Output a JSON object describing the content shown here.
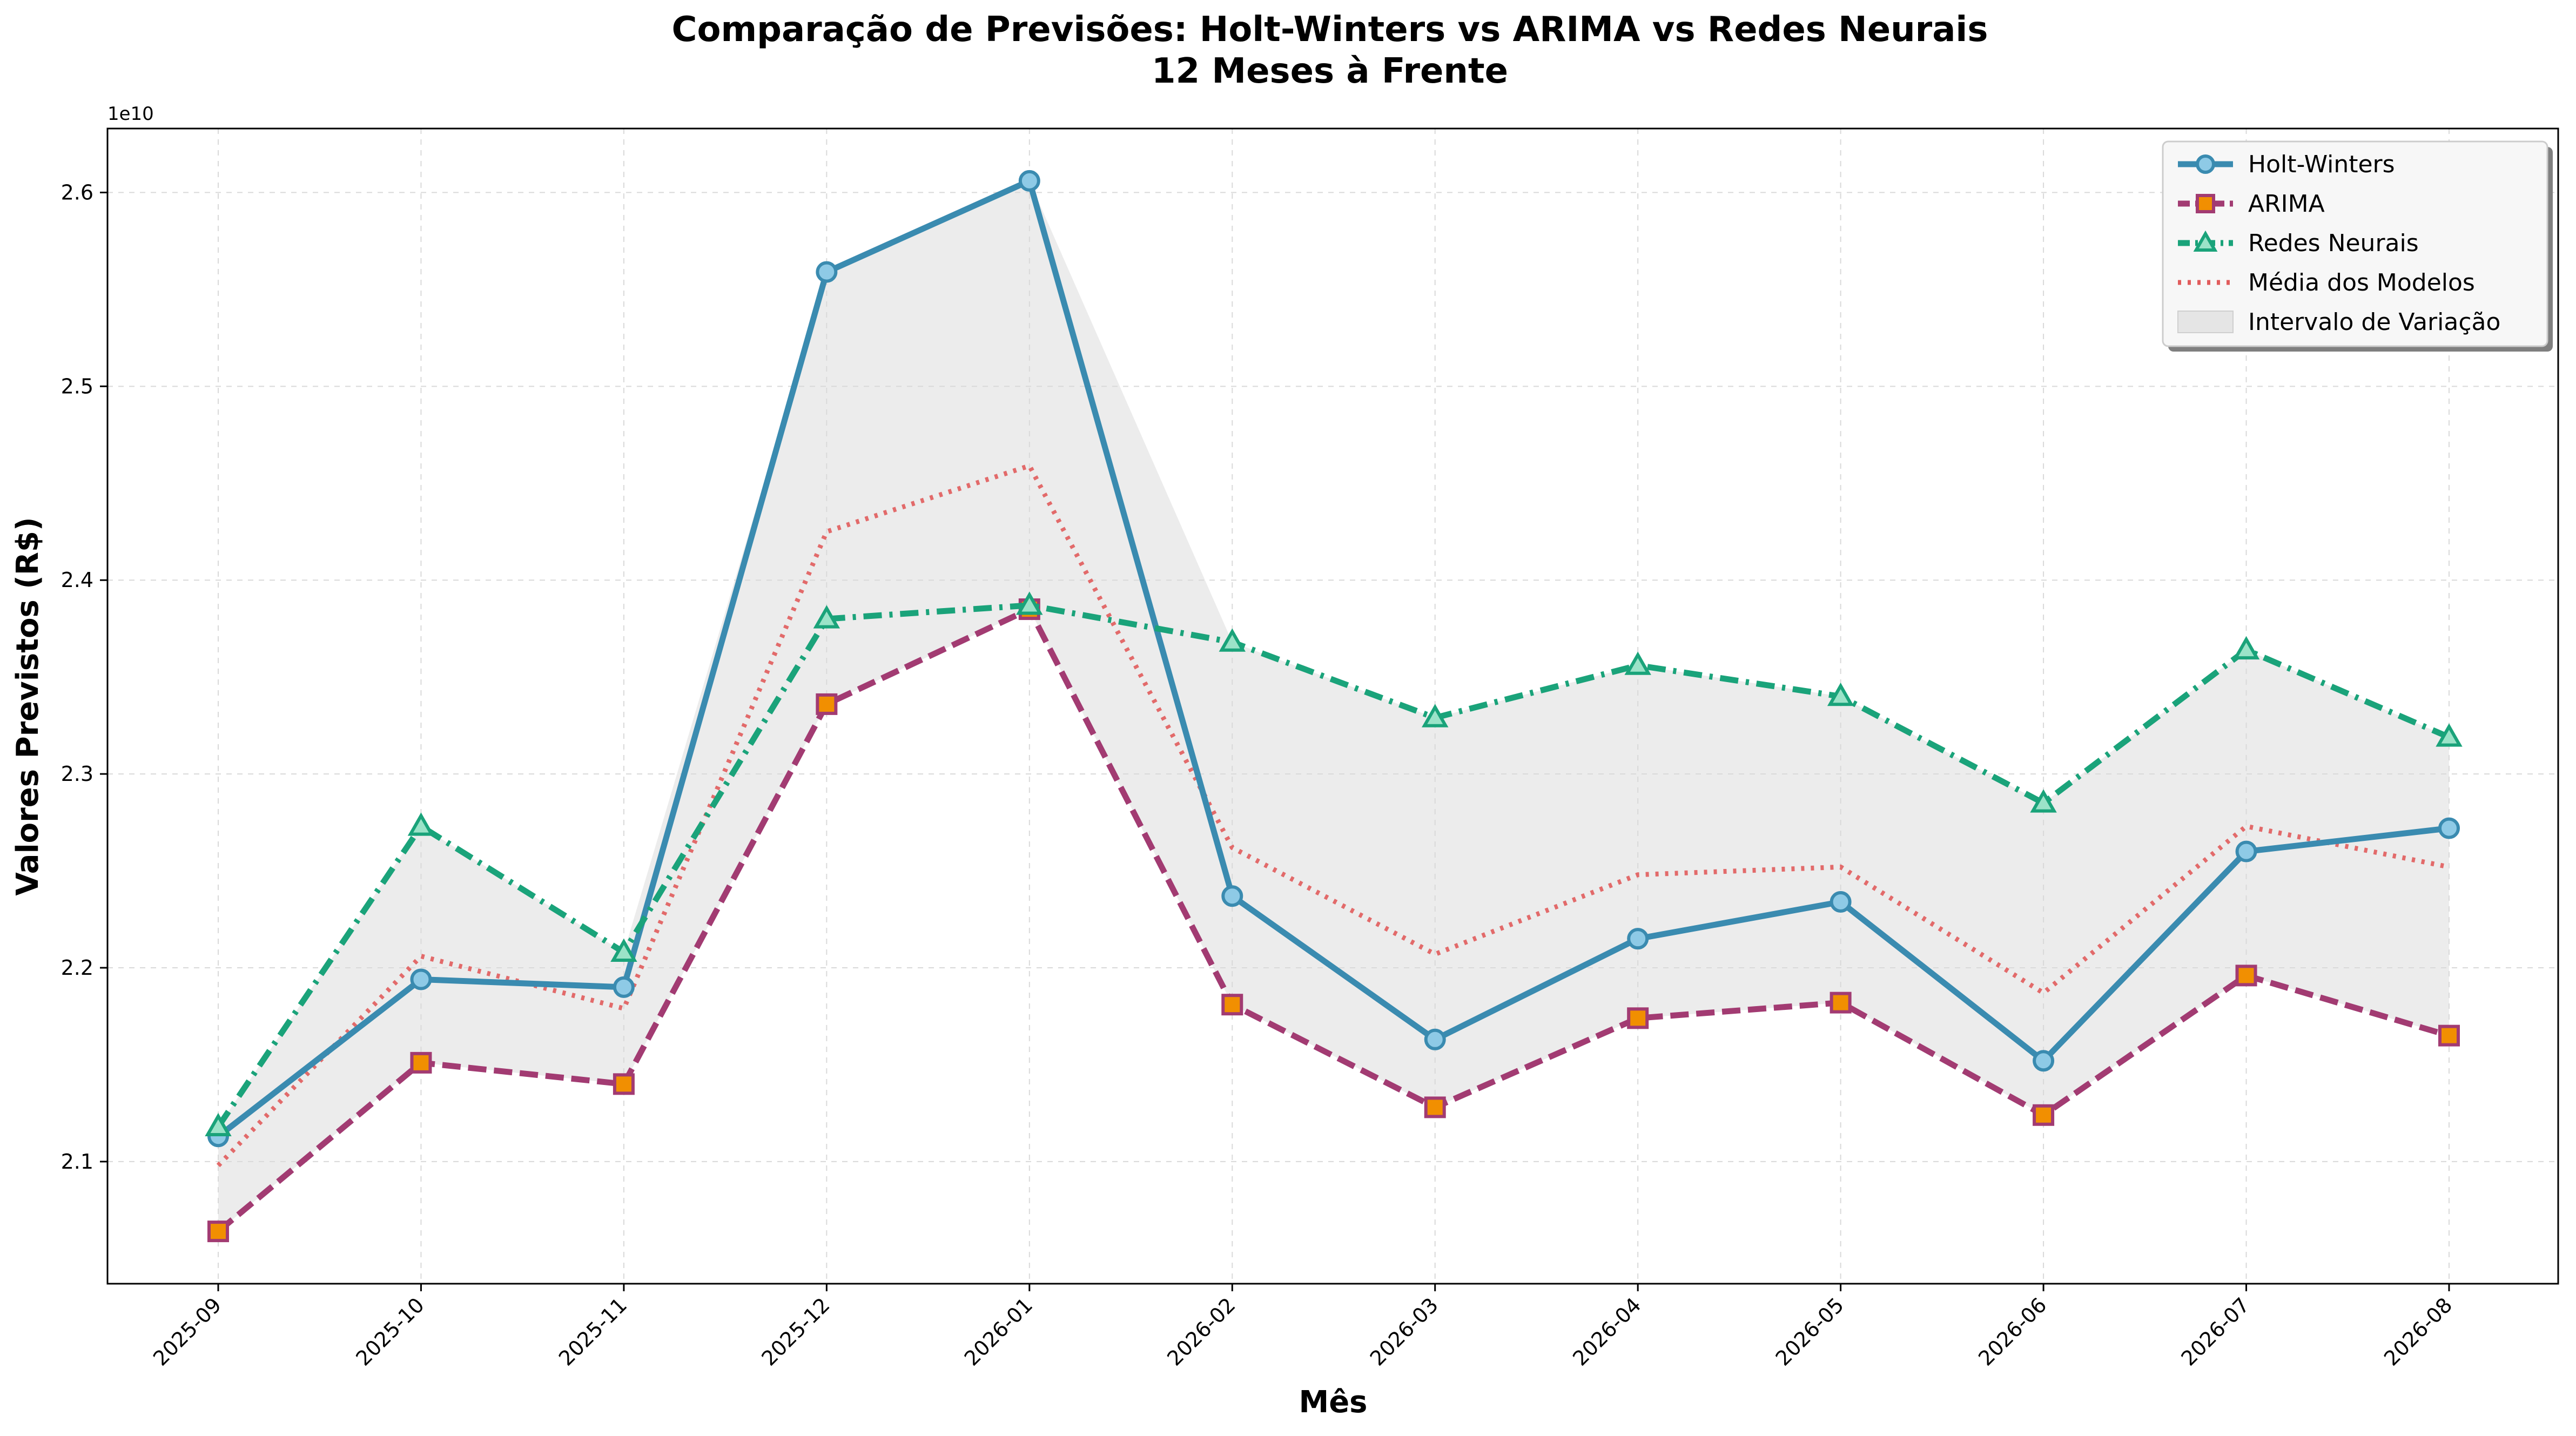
{
  "chart_data": {
    "type": "line",
    "title": "Comparação de Previsões: Holt-Winters vs ARIMA vs Redes Neurais",
    "subtitle": "12 Meses à Frente",
    "xlabel": "Mês",
    "ylabel": "Valores Previstos (R$)",
    "y_offset_label": "1e10",
    "y_scale": 10000000000,
    "categories": [
      "2025-09",
      "2025-10",
      "2025-11",
      "2025-12",
      "2026-01",
      "2026-02",
      "2026-03",
      "2026-04",
      "2026-05",
      "2026-06",
      "2026-07",
      "2026-08"
    ],
    "ylim": [
      2.037,
      2.633
    ],
    "yticks": [
      2.1,
      2.2,
      2.3,
      2.4,
      2.5,
      2.6
    ],
    "ytick_labels": [
      "2.1",
      "2.2",
      "2.3",
      "2.4",
      "2.5",
      "2.6"
    ],
    "grid": true,
    "legend_position": "top-right",
    "series": [
      {
        "name": "Holt-Winters",
        "color": "#3a8bb0",
        "marker_fill": "#8ecae6",
        "marker": "circle",
        "line_style": "solid",
        "values": [
          2.113,
          2.194,
          2.19,
          2.559,
          2.606,
          2.237,
          2.163,
          2.215,
          2.234,
          2.152,
          2.26,
          2.272
        ]
      },
      {
        "name": "ARIMA",
        "color": "#a23b72",
        "marker_fill": "#f18f01",
        "marker": "square",
        "line_style": "dashed",
        "values": [
          2.064,
          2.151,
          2.14,
          2.336,
          2.385,
          2.181,
          2.128,
          2.174,
          2.182,
          2.124,
          2.196,
          2.165
        ]
      },
      {
        "name": "Redes Neurais",
        "color": "#1aa37a",
        "marker_fill": "#9be3c8",
        "marker": "triangle",
        "line_style": "dashdot",
        "values": [
          2.118,
          2.273,
          2.208,
          2.38,
          2.387,
          2.368,
          2.329,
          2.356,
          2.34,
          2.285,
          2.364,
          2.319
        ]
      },
      {
        "name": "Média dos Modelos",
        "color": "#e15c5c",
        "marker": "none",
        "line_style": "dotted",
        "values": [
          2.098,
          2.206,
          2.179,
          2.425,
          2.459,
          2.262,
          2.207,
          2.248,
          2.252,
          2.187,
          2.273,
          2.252
        ]
      }
    ],
    "band": {
      "name": "Intervalo de Variação",
      "color": "#d9d9d9"
    }
  }
}
